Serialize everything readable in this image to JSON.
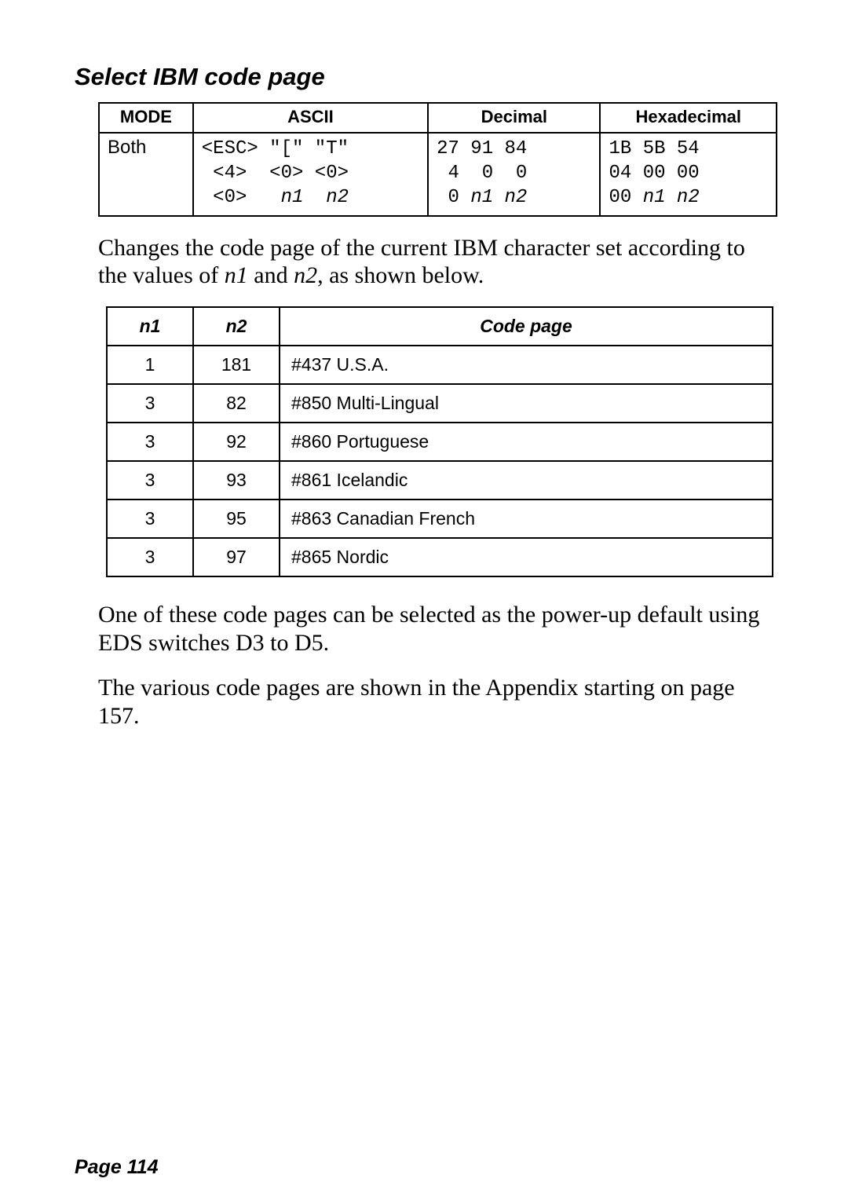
{
  "section_title": "Select IBM code page",
  "mode_table": {
    "headers": {
      "mode": "MODE",
      "ascii": "ASCII",
      "decimal": "Decimal",
      "hex": "Hexadecimal"
    },
    "mode": "Both",
    "ascii_line1": "<ESC> \"[\" \"T\"",
    "ascii_line2_a": " <4>  <0> <0>",
    "ascii_line3_a": " <0>   ",
    "ascii_line3_b": "n1  n2",
    "dec_line1": "27 91 84",
    "dec_line2": " 4  0  0",
    "dec_line3_a": " 0 ",
    "dec_line3_b": "n1 n2",
    "hex_line1": "1B 5B 54",
    "hex_line2": "04 00 00",
    "hex_line3_a": "00 ",
    "hex_line3_b": "n1 n2"
  },
  "para1_a": "Changes the code page of the current IBM character set according to the values of ",
  "para1_n1": "n1",
  "para1_mid": " and ",
  "para1_n2": "n2",
  "para1_b": ", as shown below.",
  "code_table": {
    "headers": {
      "n1": "n1",
      "n2": "n2",
      "cp": "Code page"
    },
    "rows": [
      {
        "n1": "1",
        "n2": "181",
        "cp": "#437 U.S.A."
      },
      {
        "n1": "3",
        "n2": "82",
        "cp": "#850 Multi-Lingual"
      },
      {
        "n1": "3",
        "n2": "92",
        "cp": "#860 Portuguese"
      },
      {
        "n1": "3",
        "n2": "93",
        "cp": "#861 Icelandic"
      },
      {
        "n1": "3",
        "n2": "95",
        "cp": "#863 Canadian French"
      },
      {
        "n1": "3",
        "n2": "97",
        "cp": "#865 Nordic"
      }
    ]
  },
  "para2": "One of these code pages can be selected as the power-up default using EDS switches D3 to D5.",
  "para3": "The various code pages are shown in the Appendix starting on page 157.",
  "footer": "Page 114"
}
